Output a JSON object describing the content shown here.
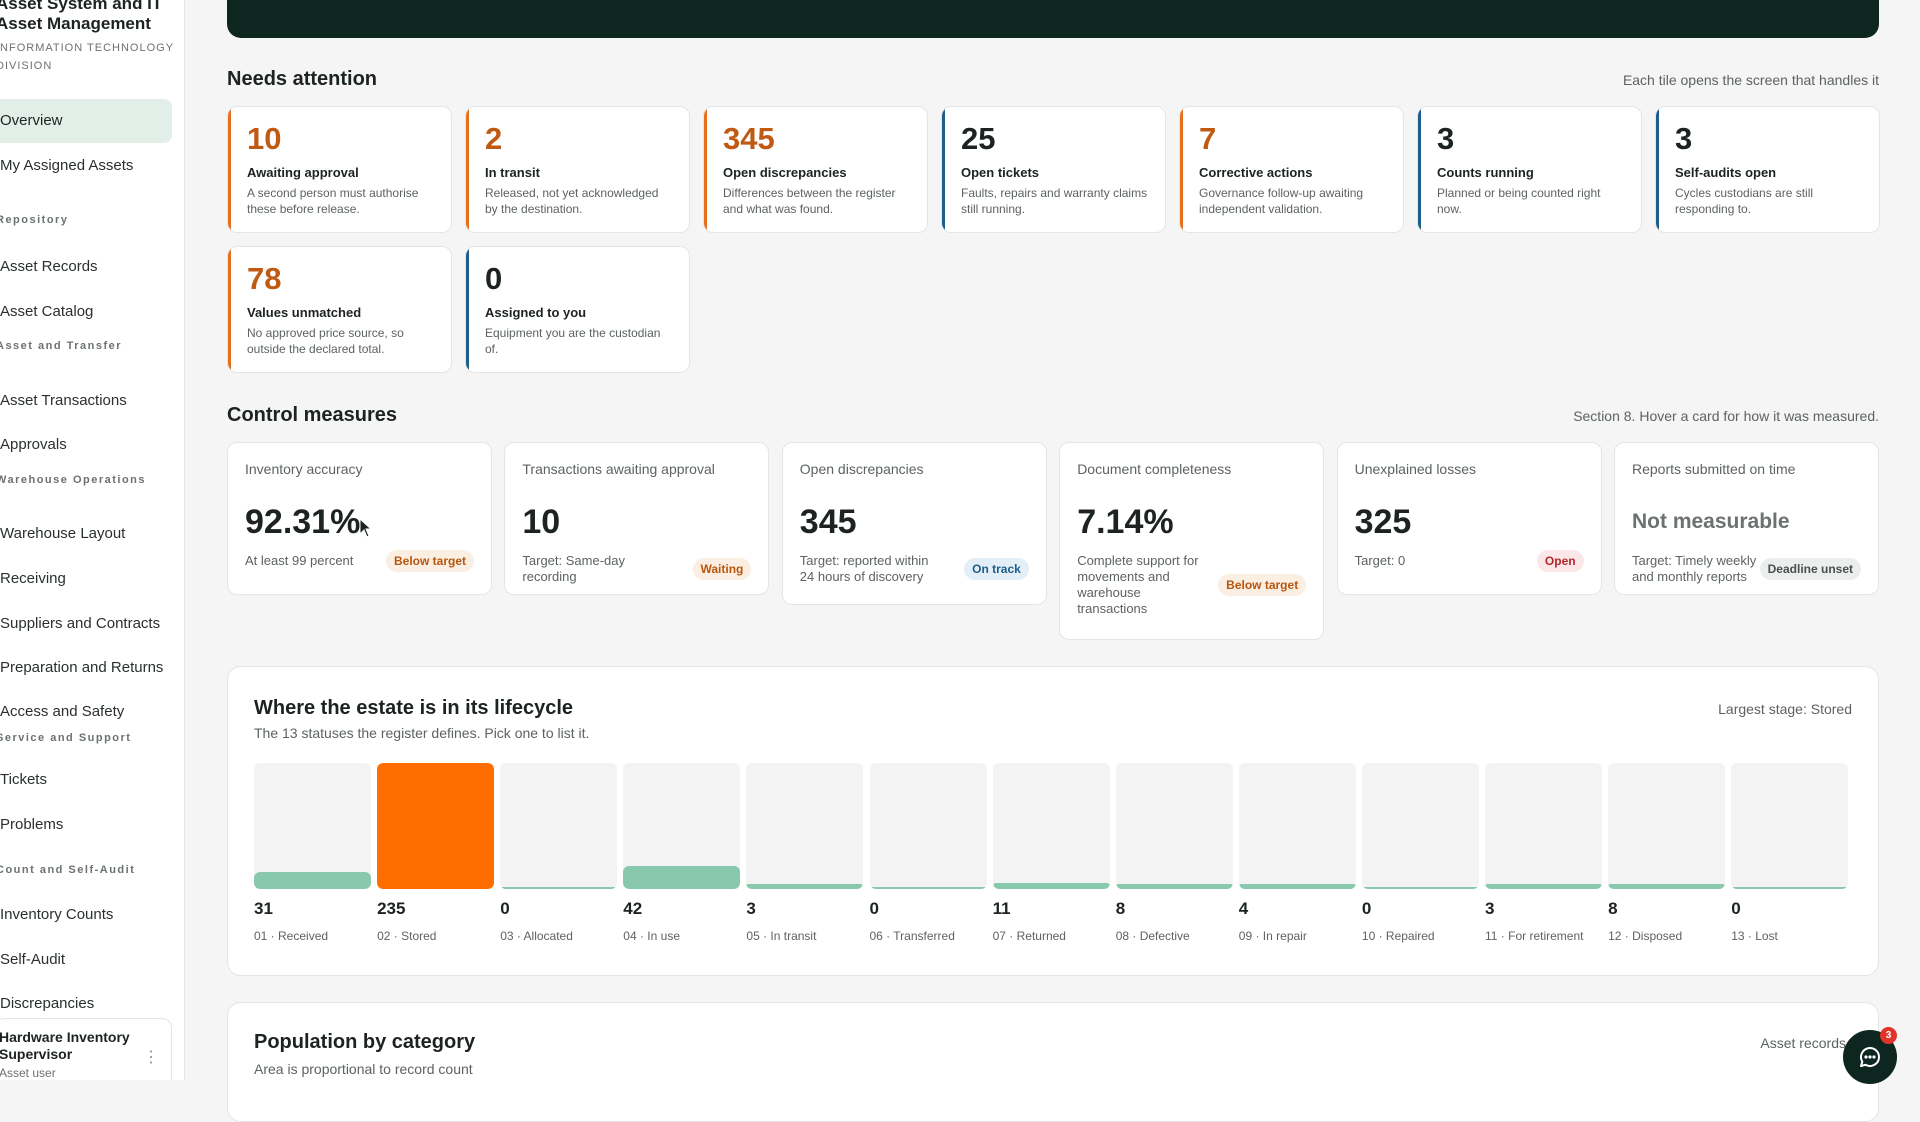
{
  "sidebar": {
    "brand_title": "Asset System and IT Asset Management",
    "brand_sub": "Information Technology Division",
    "items": [
      {
        "label": "Overview",
        "active": true
      },
      {
        "label": "My Assigned Assets"
      },
      {
        "section": "Repository"
      },
      {
        "label": "Asset Records"
      },
      {
        "label": "Asset Catalog"
      },
      {
        "section": "Asset and Transfer"
      },
      {
        "label": "Asset Transactions"
      },
      {
        "label": "Approvals"
      },
      {
        "section": "Warehouse Operations"
      },
      {
        "label": "Warehouse Layout"
      },
      {
        "label": "Receiving"
      },
      {
        "label": "Suppliers and Contracts"
      },
      {
        "label": "Preparation and Returns"
      },
      {
        "label": "Access and Safety"
      },
      {
        "section": "Service and Support"
      },
      {
        "label": "Tickets"
      },
      {
        "label": "Problems"
      },
      {
        "section": "Count and Self-Audit"
      },
      {
        "label": "Inventory Counts"
      },
      {
        "label": "Self-Audit"
      },
      {
        "label": "Discrepancies"
      }
    ],
    "user": {
      "name": "Hardware Inventory Supervisor",
      "role": "Asset user",
      "menu": "⋮"
    }
  },
  "needs_attention": {
    "title": "Needs attention",
    "note": "Each tile opens the screen that handles it",
    "tiles": [
      {
        "value": "10",
        "label": "Awaiting approval",
        "desc": "A second person must authorise these before release.",
        "accent": "orange"
      },
      {
        "value": "2",
        "label": "In transit",
        "desc": "Released, not yet acknowledged by the destination.",
        "accent": "orange"
      },
      {
        "value": "345",
        "label": "Open discrepancies",
        "desc": "Differences between the register and what was found.",
        "accent": "orange"
      },
      {
        "value": "25",
        "label": "Open tickets",
        "desc": "Faults, repairs and warranty claims still running.",
        "accent": "blue"
      },
      {
        "value": "7",
        "label": "Corrective actions",
        "desc": "Governance follow-up awaiting independent validation.",
        "accent": "orange"
      },
      {
        "value": "3",
        "label": "Counts running",
        "desc": "Planned or being counted right now.",
        "accent": "blue"
      },
      {
        "value": "3",
        "label": "Self-audits open",
        "desc": "Cycles custodians are still responding to.",
        "accent": "blue"
      },
      {
        "value": "78",
        "label": "Values unmatched",
        "desc": "No approved price source, so outside the declared total.",
        "accent": "orange"
      },
      {
        "value": "0",
        "label": "Assigned to you",
        "desc": "Equipment you are the custodian of.",
        "accent": "blue"
      }
    ]
  },
  "control_measures": {
    "title": "Control measures",
    "note": "Section 8. Hover a card for how it was measured.",
    "cards": [
      {
        "label": "Inventory accuracy",
        "value": "92.31%",
        "target": "At least 99 percent",
        "badge": "Below target",
        "tone": "orange"
      },
      {
        "label": "Transactions awaiting approval",
        "value": "10",
        "target": "Target: Same-day recording",
        "badge": "Waiting",
        "tone": "orange"
      },
      {
        "label": "Open discrepancies",
        "value": "345",
        "target": "Target: reported within 24 hours of discovery",
        "badge": "On track",
        "tone": "blue"
      },
      {
        "label": "Document completeness",
        "value": "7.14%",
        "target": "Complete support for movements and warehouse transactions",
        "badge": "Below target",
        "tone": "orange"
      },
      {
        "label": "Unexplained losses",
        "value": "325",
        "target": "Target: 0",
        "badge": "Open",
        "tone": "red"
      },
      {
        "label": "Reports submitted on time",
        "value": "Not measurable",
        "target": "Target: Timely weekly and monthly reports",
        "badge": "Deadline unset",
        "tone": "gray"
      }
    ]
  },
  "lifecycle": {
    "title": "Where the estate is in its lifecycle",
    "subtitle": "The 13 statuses the register defines. Pick one to list it.",
    "note": "Largest stage: Stored",
    "highlight_color": "#ff6d00",
    "bar_color": "#88c9ae"
  },
  "chart_data": {
    "type": "bar",
    "categories": [
      "01 · Received",
      "02 · Stored",
      "03 · Allocated",
      "04 · In use",
      "05 · In transit",
      "06 · Transferred",
      "07 · Returned",
      "08 · Defective",
      "09 · In repair",
      "10 · Repaired",
      "11 · For retirement",
      "12 · Disposed",
      "13 · Lost"
    ],
    "values": [
      31,
      235,
      0,
      42,
      3,
      0,
      11,
      8,
      4,
      0,
      3,
      8,
      0
    ],
    "title": "Where the estate is in its lifecycle",
    "highlight_index": 1
  },
  "population": {
    "title": "Population by category",
    "subtitle": "Area is proportional to record count",
    "note": "Asset records"
  },
  "chat": {
    "badge": "3"
  }
}
